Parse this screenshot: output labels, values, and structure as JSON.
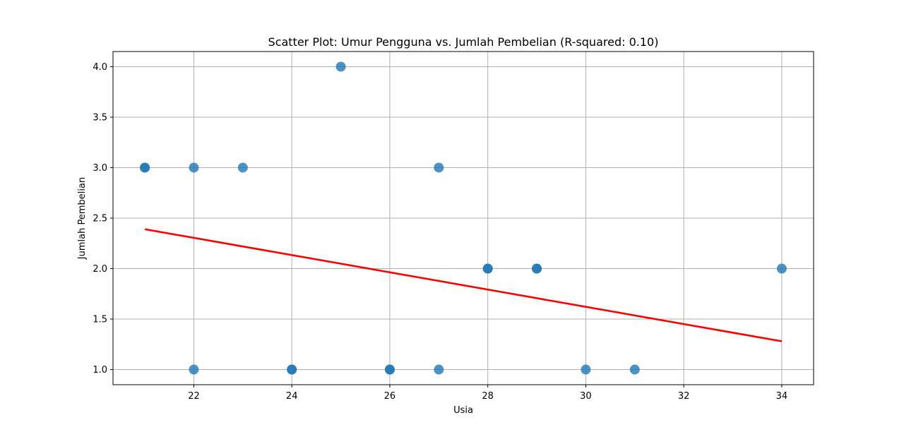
{
  "chart_data": {
    "type": "scatter",
    "title": "Scatter Plot: Umur Pengguna vs. Jumlah Pembelian (R-squared: 0.10)",
    "xlabel": "Usia",
    "ylabel": "Jumlah Pembelian",
    "xlim": [
      20.35,
      34.65
    ],
    "ylim": [
      0.85,
      4.15
    ],
    "xticks": [
      22,
      24,
      26,
      28,
      30,
      32,
      34
    ],
    "xtick_labels": [
      "22",
      "24",
      "26",
      "28",
      "30",
      "32",
      "34"
    ],
    "yticks": [
      1.0,
      1.5,
      2.0,
      2.5,
      3.0,
      3.5,
      4.0
    ],
    "ytick_labels": [
      "1.0",
      "1.5",
      "2.0",
      "2.5",
      "3.0",
      "3.5",
      "4.0"
    ],
    "grid": true,
    "series": [
      {
        "kind": "scatter",
        "color": "#1f77b4",
        "points": [
          {
            "x": 21,
            "y": 3
          },
          {
            "x": 21,
            "y": 3
          },
          {
            "x": 22,
            "y": 3
          },
          {
            "x": 22,
            "y": 1
          },
          {
            "x": 23,
            "y": 3
          },
          {
            "x": 24,
            "y": 1
          },
          {
            "x": 24,
            "y": 1
          },
          {
            "x": 25,
            "y": 4
          },
          {
            "x": 26,
            "y": 1
          },
          {
            "x": 26,
            "y": 1
          },
          {
            "x": 27,
            "y": 3
          },
          {
            "x": 27,
            "y": 1
          },
          {
            "x": 28,
            "y": 2
          },
          {
            "x": 28,
            "y": 2
          },
          {
            "x": 29,
            "y": 2
          },
          {
            "x": 29,
            "y": 2
          },
          {
            "x": 30,
            "y": 1
          },
          {
            "x": 31,
            "y": 1
          },
          {
            "x": 34,
            "y": 2
          }
        ]
      },
      {
        "kind": "regression-line",
        "color": "#ff0000",
        "points": [
          {
            "x": 21,
            "y": 2.39
          },
          {
            "x": 34,
            "y": 1.28
          }
        ]
      }
    ]
  }
}
